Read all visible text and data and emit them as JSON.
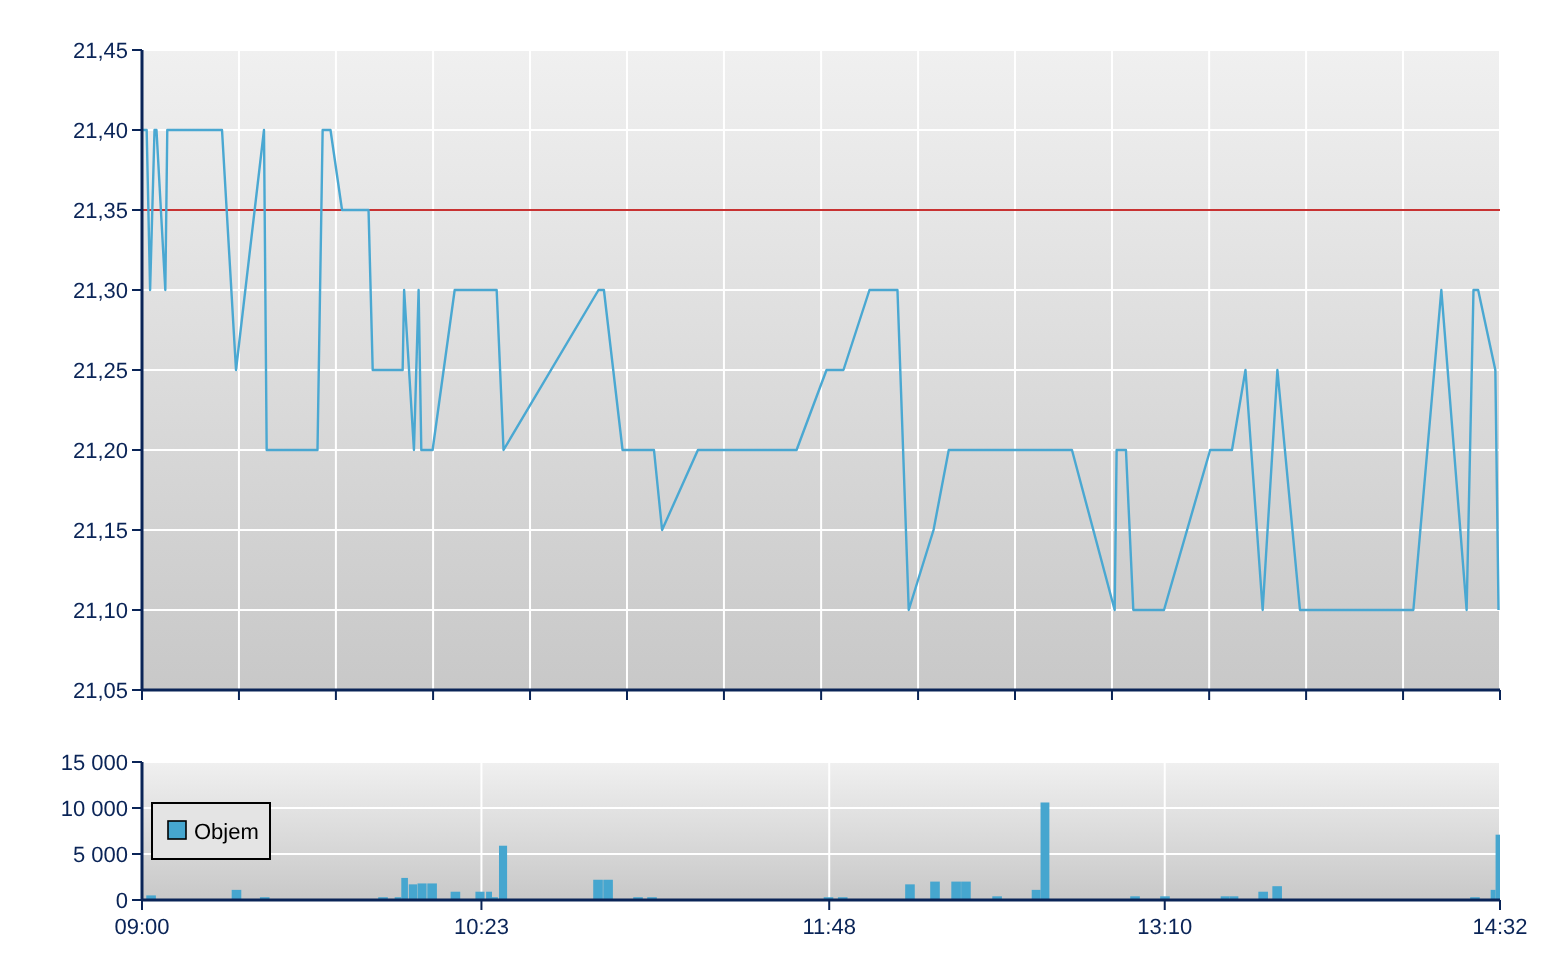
{
  "chart_data": [
    {
      "type": "line",
      "x": [
        9.0,
        9.019,
        9.033,
        9.051,
        9.059,
        9.095,
        9.103,
        9.326,
        9.383,
        9.497,
        9.508,
        9.715,
        9.736,
        9.768,
        9.815,
        9.923,
        9.94,
        10.062,
        10.068,
        10.108,
        10.127,
        10.138,
        10.184,
        10.274,
        10.445,
        10.473,
        10.86,
        10.882,
        10.958,
        11.086,
        11.119,
        11.265,
        11.667,
        11.789,
        11.858,
        11.964,
        12.078,
        12.124,
        12.225,
        12.287,
        12.789,
        12.963,
        12.971,
        13.009,
        13.039,
        13.164,
        13.352,
        13.441,
        13.496,
        13.566,
        13.626,
        13.718,
        14.18,
        14.294,
        14.397,
        14.425,
        14.444,
        14.514,
        14.527
      ],
      "series": [
        {
          "color": "#4aa8d2",
          "values": [
            21.4,
            21.4,
            21.3,
            21.4,
            21.4,
            21.3,
            21.4,
            21.4,
            21.25,
            21.4,
            21.2,
            21.2,
            21.4,
            21.4,
            21.35,
            21.35,
            21.25,
            21.25,
            21.3,
            21.2,
            21.3,
            21.2,
            21.2,
            21.3,
            21.3,
            21.2,
            21.3,
            21.3,
            21.2,
            21.2,
            21.15,
            21.2,
            21.2,
            21.25,
            21.25,
            21.3,
            21.3,
            21.1,
            21.15,
            21.2,
            21.2,
            21.1,
            21.2,
            21.2,
            21.1,
            21.1,
            21.2,
            21.2,
            21.25,
            21.1,
            21.25,
            21.1,
            21.1,
            21.3,
            21.1,
            21.3,
            21.3,
            21.25,
            21.1
          ]
        }
      ],
      "xlim": [
        9.0,
        14.533
      ],
      "xticks": [
        {
          "value": 9.0,
          "label": null
        },
        {
          "value": 9.395,
          "label": null
        },
        {
          "value": 9.79,
          "label": null
        },
        {
          "value": 10.186,
          "label": null
        },
        {
          "value": 10.581,
          "label": null
        },
        {
          "value": 10.976,
          "label": null
        },
        {
          "value": 11.371,
          "label": null
        },
        {
          "value": 11.767,
          "label": null
        },
        {
          "value": 12.162,
          "label": null
        },
        {
          "value": 12.557,
          "label": null
        },
        {
          "value": 12.952,
          "label": null
        },
        {
          "value": 13.348,
          "label": null
        },
        {
          "value": 13.743,
          "label": null
        },
        {
          "value": 14.138,
          "label": null
        },
        {
          "value": 14.533,
          "label": null
        }
      ],
      "ylim": [
        21.05,
        21.45
      ],
      "yticks": [
        {
          "value": 21.05,
          "label": "21,05"
        },
        {
          "value": 21.1,
          "label": "21,10"
        },
        {
          "value": 21.15,
          "label": "21,15"
        },
        {
          "value": 21.2,
          "label": "21,20"
        },
        {
          "value": 21.25,
          "label": "21,25"
        },
        {
          "value": 21.3,
          "label": "21,30"
        },
        {
          "value": 21.35,
          "label": "21,35"
        },
        {
          "value": 21.4,
          "label": "21,40"
        },
        {
          "value": 21.45,
          "label": "21,45"
        }
      ],
      "tick_labels": "y",
      "grid": true,
      "ref_lines": [
        {
          "axis": "y",
          "value": 21.35,
          "color": "#c83232"
        }
      ]
    },
    {
      "type": "bar",
      "x": [
        9.037,
        9.385,
        9.5,
        9.982,
        10.043,
        10.07,
        10.104,
        10.141,
        10.182,
        10.277,
        10.377,
        10.414,
        10.438,
        10.471,
        10.858,
        10.899,
        11.021,
        11.078,
        11.797,
        11.855,
        12.129,
        12.231,
        12.317,
        12.357,
        12.484,
        12.643,
        12.679,
        13.046,
        13.168,
        13.413,
        13.449,
        13.568,
        13.625,
        14.431,
        14.505,
        14.525
      ],
      "series": [
        {
          "name": "Objem",
          "color": "#46a6cf",
          "values": [
            500,
            1100,
            300,
            300,
            300,
            2400,
            1700,
            1800,
            1800,
            900,
            900,
            900,
            300,
            5900,
            2200,
            2200,
            300,
            300,
            300,
            300,
            1700,
            2000,
            2000,
            2000,
            400,
            1100,
            10600,
            400,
            400,
            400,
            400,
            900,
            1500,
            300,
            1100,
            7100
          ]
        }
      ],
      "xlim": [
        9.0,
        14.533
      ],
      "xticks": [
        {
          "value": 9.0,
          "label": "09:00"
        },
        {
          "value": 10.383,
          "label": "10:23"
        },
        {
          "value": 11.8,
          "label": "11:48"
        },
        {
          "value": 13.167,
          "label": "13:10"
        },
        {
          "value": 14.533,
          "label": "14:32"
        }
      ],
      "ylim": [
        0,
        15000
      ],
      "yticks": [
        {
          "value": 0,
          "label": "0"
        },
        {
          "value": 5000,
          "label": "5 000"
        },
        {
          "value": 10000,
          "label": "10 000"
        },
        {
          "value": 15000,
          "label": "15 000"
        }
      ],
      "grid": true,
      "legend": "left"
    }
  ]
}
